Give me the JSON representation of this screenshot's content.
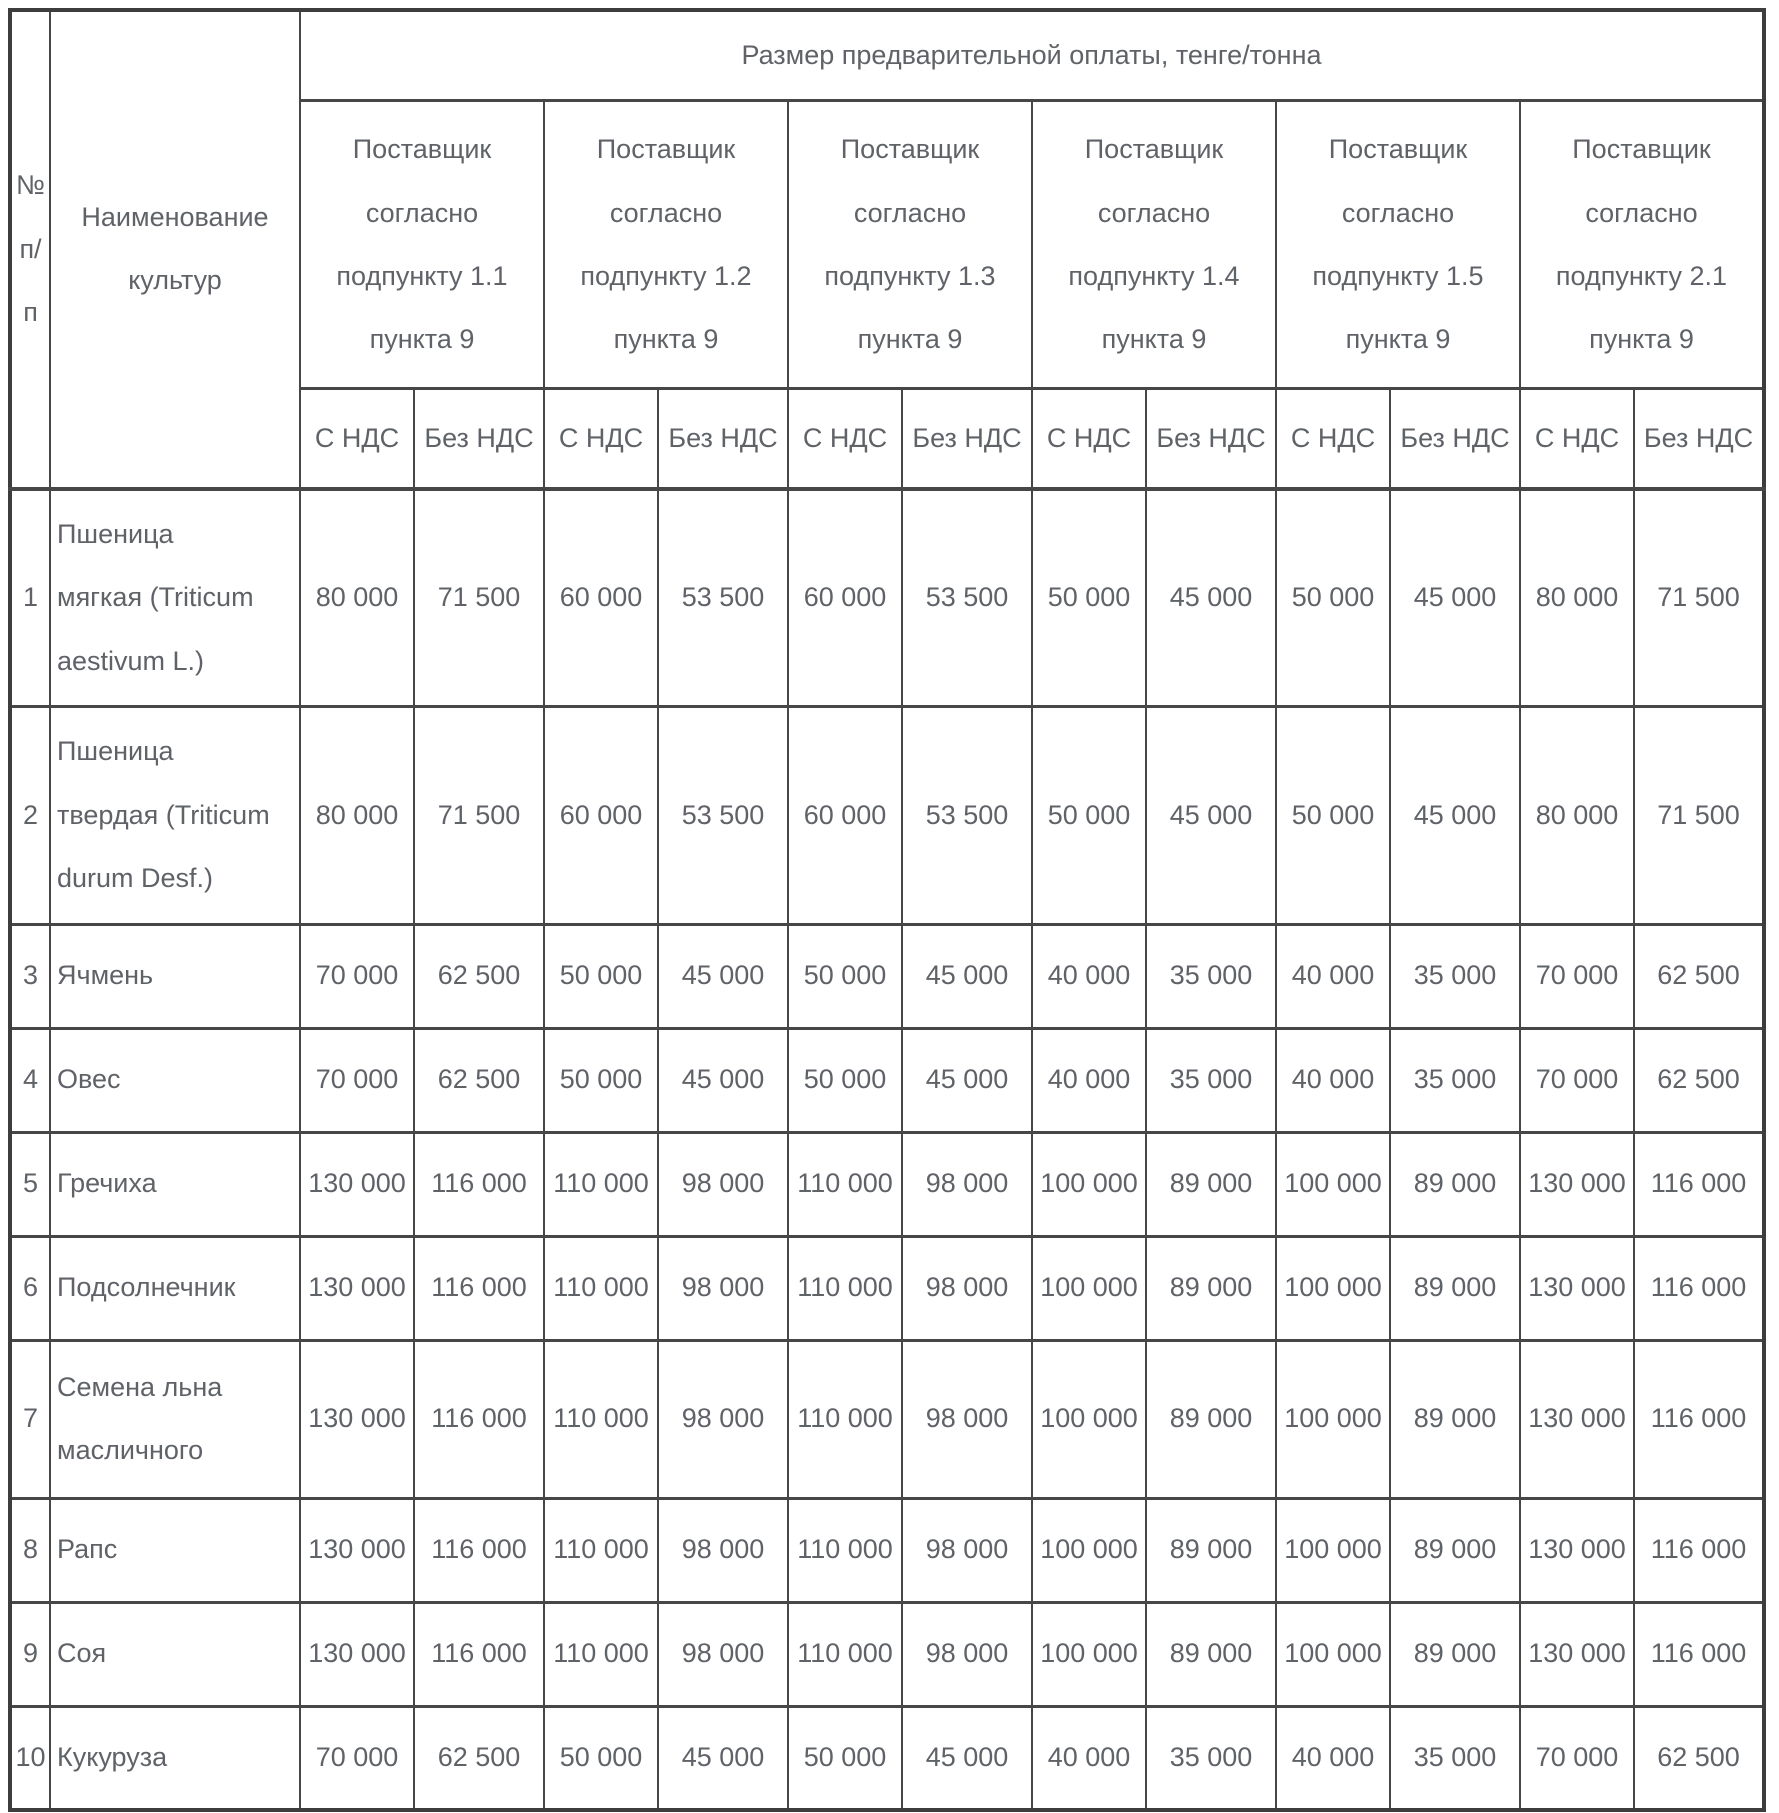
{
  "table": {
    "header": {
      "num": "№\nп/\nп",
      "name": "Наименование\nкультур",
      "payment_title": "Размер предварительной оплаты, тенге/тонна",
      "suppliers": [
        "Поставщик\nсогласно\nподпункту 1.1\nпункта 9",
        "Поставщик\nсогласно\nподпункту 1.2\nпункта 9",
        "Поставщик\nсогласно\nподпункту 1.3\nпункта 9",
        "Поставщик\nсогласно\nподпункту 1.4\nпункта 9",
        "Поставщик\nсогласно\nподпункту 1.5\nпункта 9",
        "Поставщик\nсогласно\nподпункту 2.1\nпункта 9"
      ],
      "vat": "С НДС",
      "without_vat": "Без НДС"
    },
    "rows": [
      {
        "num": "1",
        "name": "Пшеница\nмягкая (Triticum\naestivum L.)",
        "values": [
          "80 000",
          "71 500",
          "60 000",
          "53 500",
          "60 000",
          "53 500",
          "50 000",
          "45 000",
          "50 000",
          "45 000",
          "80 000",
          "71 500"
        ]
      },
      {
        "num": "2",
        "name": "Пшеница\nтвердая (Triticum\ndurum Desf.)",
        "values": [
          "80 000",
          "71 500",
          "60 000",
          "53 500",
          "60 000",
          "53 500",
          "50 000",
          "45 000",
          "50 000",
          "45 000",
          "80 000",
          "71 500"
        ]
      },
      {
        "num": "3",
        "name": "Ячмень",
        "values": [
          "70 000",
          "62 500",
          "50 000",
          "45 000",
          "50 000",
          "45 000",
          "40 000",
          "35 000",
          "40 000",
          "35 000",
          "70 000",
          "62 500"
        ]
      },
      {
        "num": "4",
        "name": "Овес",
        "values": [
          "70 000",
          "62 500",
          "50 000",
          "45 000",
          "50 000",
          "45 000",
          "40 000",
          "35 000",
          "40 000",
          "35 000",
          "70 000",
          "62 500"
        ]
      },
      {
        "num": "5",
        "name": "Гречиха",
        "values": [
          "130 000",
          "116 000",
          "110 000",
          "98 000",
          "110 000",
          "98 000",
          "100 000",
          "89 000",
          "100 000",
          "89 000",
          "130 000",
          "116 000"
        ]
      },
      {
        "num": "6",
        "name": "Подсолнечник",
        "values": [
          "130 000",
          "116 000",
          "110 000",
          "98 000",
          "110 000",
          "98 000",
          "100 000",
          "89 000",
          "100 000",
          "89 000",
          "130 000",
          "116 000"
        ]
      },
      {
        "num": "7",
        "name": "Семена льна\nмасличного",
        "values": [
          "130 000",
          "116 000",
          "110 000",
          "98 000",
          "110 000",
          "98 000",
          "100 000",
          "89 000",
          "100 000",
          "89 000",
          "130 000",
          "116 000"
        ]
      },
      {
        "num": "8",
        "name": "Рапс",
        "values": [
          "130 000",
          "116 000",
          "110 000",
          "98 000",
          "110 000",
          "98 000",
          "100 000",
          "89 000",
          "100 000",
          "89 000",
          "130 000",
          "116 000"
        ]
      },
      {
        "num": "9",
        "name": "Соя",
        "values": [
          "130 000",
          "116 000",
          "110 000",
          "98 000",
          "110 000",
          "98 000",
          "100 000",
          "89 000",
          "100 000",
          "89 000",
          "130 000",
          "116 000"
        ]
      },
      {
        "num": "10",
        "name": "Кукуруза",
        "values": [
          "70 000",
          "62 500",
          "50 000",
          "45 000",
          "50 000",
          "45 000",
          "40 000",
          "35 000",
          "40 000",
          "35 000",
          "70 000",
          "62 500"
        ]
      }
    ]
  },
  "colors": {
    "text": "#5f6368",
    "border_inner": "#474747",
    "border_outer": "#3d3d3d",
    "background": "#ffffff"
  }
}
